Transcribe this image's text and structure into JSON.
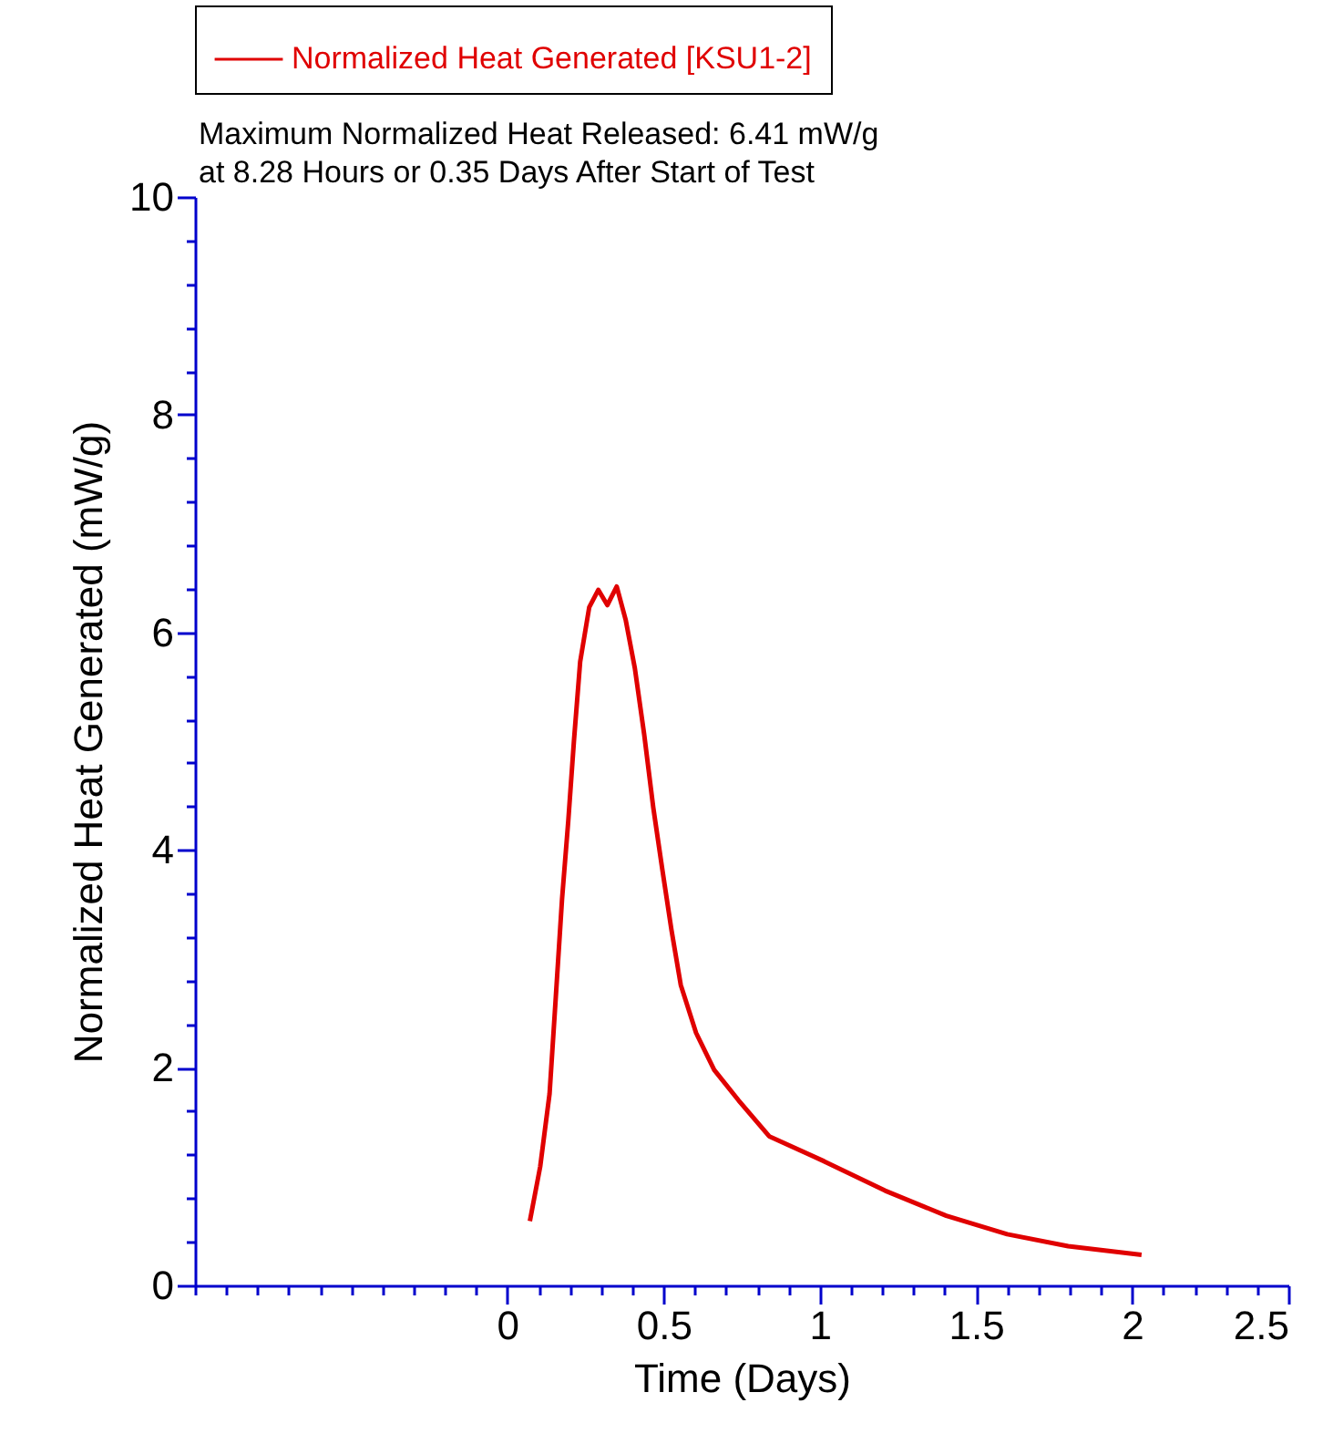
{
  "chart_data": {
    "type": "line",
    "xlabel": "Time (Days)",
    "ylabel": "Normalized Heat Generated (mW/g)",
    "annotations": [
      "Maximum Normalized Heat Released: 6.41 mW/g",
      "at 8.28 Hours or 0.35 Days After Start of Test"
    ],
    "series": [
      {
        "name": "Normalized Heat Generated [KSU1-2]",
        "color": "#e00000",
        "x": [
          0.072,
          0.105,
          0.135,
          0.155,
          0.175,
          0.195,
          0.213,
          0.233,
          0.262,
          0.291,
          0.32,
          0.35,
          0.379,
          0.408,
          0.438,
          0.467,
          0.496,
          0.525,
          0.555,
          0.604,
          0.662,
          0.74,
          0.838,
          1.014,
          1.209,
          1.405,
          1.6,
          1.795,
          2.03
        ],
        "values": [
          0.59,
          1.09,
          1.76,
          2.65,
          3.55,
          4.27,
          5.0,
          5.73,
          6.23,
          6.39,
          6.25,
          6.42,
          6.11,
          5.67,
          5.06,
          4.39,
          3.82,
          3.27,
          2.76,
          2.32,
          1.98,
          1.7,
          1.37,
          1.14,
          0.87,
          0.64,
          0.47,
          0.36,
          0.28
        ]
      }
    ],
    "xlim": [
      -1,
      2.5
    ],
    "xticks": [
      {
        "value": -1,
        "label": null
      },
      {
        "value": -0.9,
        "label": null
      },
      {
        "value": -0.8,
        "label": null
      },
      {
        "value": -0.7,
        "label": null
      },
      {
        "value": -0.6,
        "label": null
      },
      {
        "value": -0.5,
        "label": null
      },
      {
        "value": -0.4,
        "label": null
      },
      {
        "value": -0.3,
        "label": null
      },
      {
        "value": -0.2,
        "label": null
      },
      {
        "value": -0.1,
        "label": null
      },
      0,
      {
        "value": 0.1,
        "label": null
      },
      {
        "value": 0.2,
        "label": null
      },
      {
        "value": 0.3,
        "label": null
      },
      {
        "value": 0.4,
        "label": null
      },
      0.5,
      {
        "value": 0.6,
        "label": null
      },
      {
        "value": 0.7,
        "label": null
      },
      {
        "value": 0.8,
        "label": null
      },
      {
        "value": 0.9,
        "label": null
      },
      1,
      {
        "value": 1.1,
        "label": null
      },
      {
        "value": 1.2,
        "label": null
      },
      {
        "value": 1.3,
        "label": null
      },
      {
        "value": 1.4,
        "label": null
      },
      1.5,
      {
        "value": 1.6,
        "label": null
      },
      {
        "value": 1.7,
        "label": null
      },
      {
        "value": 1.8,
        "label": null
      },
      {
        "value": 1.9,
        "label": null
      },
      2,
      {
        "value": 2.1,
        "label": null
      },
      {
        "value": 2.2,
        "label": null
      },
      {
        "value": 2.3,
        "label": null
      },
      {
        "value": 2.4,
        "label": null
      },
      2.5
    ],
    "ylim": [
      0,
      10
    ],
    "yticks": [
      0,
      {
        "value": 0.4,
        "label": null
      },
      {
        "value": 0.8,
        "label": null
      },
      {
        "value": 1.2,
        "label": null
      },
      {
        "value": 1.6,
        "label": null
      },
      2,
      {
        "value": 2.4,
        "label": null
      },
      {
        "value": 2.8,
        "label": null
      },
      {
        "value": 3.2,
        "label": null
      },
      {
        "value": 3.6,
        "label": null
      },
      4,
      {
        "value": 4.4,
        "label": null
      },
      {
        "value": 4.8,
        "label": null
      },
      {
        "value": 5.2,
        "label": null
      },
      {
        "value": 5.6,
        "label": null
      },
      6,
      {
        "value": 6.4,
        "label": null
      },
      {
        "value": 6.8,
        "label": null
      },
      {
        "value": 7.2,
        "label": null
      },
      {
        "value": 7.6,
        "label": null
      },
      8,
      {
        "value": 8.4,
        "label": null
      },
      {
        "value": 8.8,
        "label": null
      },
      {
        "value": 9.2,
        "label": null
      },
      {
        "value": 9.6,
        "label": null
      },
      10
    ],
    "grid": false,
    "legend": "top",
    "marker": "none",
    "line_style": "solid"
  }
}
